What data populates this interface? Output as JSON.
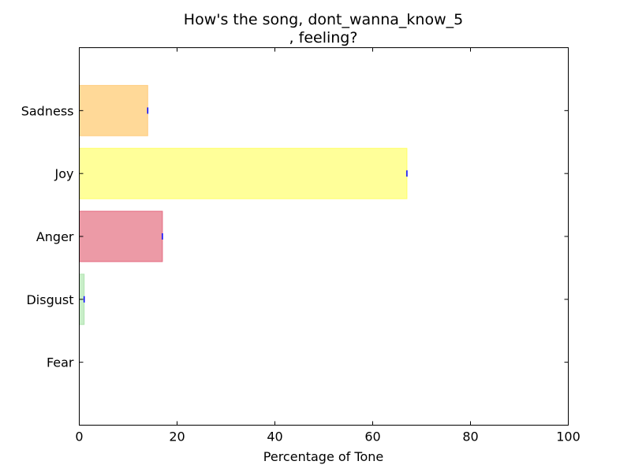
{
  "chart_data": {
    "type": "bar",
    "orientation": "horizontal",
    "title_line1": "How's the song, dont_wanna_know_5",
    "title_line2": ", feeling?",
    "xlabel": "Percentage of Tone",
    "ylabel": "",
    "xlim": [
      0,
      100
    ],
    "x_ticks": [
      "0",
      "20",
      "40",
      "60",
      "80",
      "100"
    ],
    "categories": [
      "Fear",
      "Disgust",
      "Anger",
      "Joy",
      "Sadness"
    ],
    "values": [
      0,
      1,
      17,
      67,
      14
    ],
    "colors": [
      "#ffffff",
      "#c8eec8",
      "#ec9aa6",
      "#ffff99",
      "#ffd998"
    ],
    "edge_colors": [
      "#ffffff",
      "#b0e3b0",
      "#e46a80",
      "#ffff66",
      "#ffcc80"
    ],
    "marker_color": "#0000ff",
    "grid": false,
    "legend": "none"
  }
}
